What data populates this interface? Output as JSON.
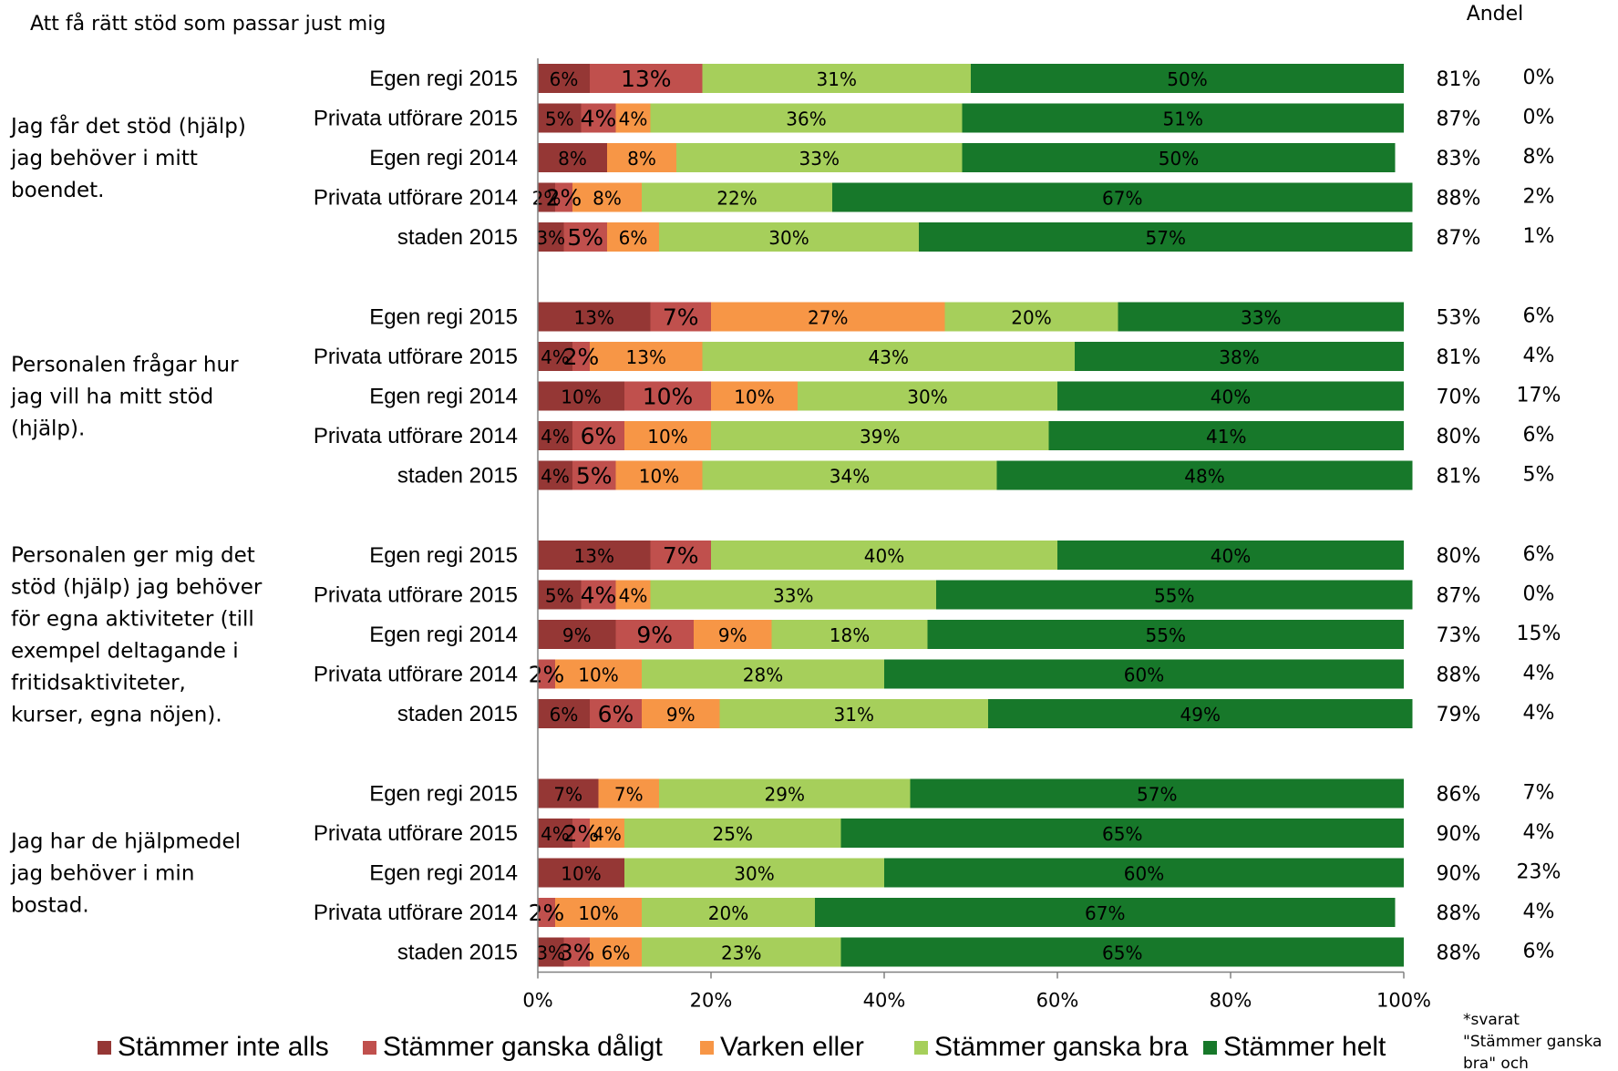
{
  "title": "Att få rätt stöd som passar just mig",
  "share_header": "Andel",
  "footnote_lines": [
    "*svarat",
    "\"Stämmer ganska",
    "bra\" och"
  ],
  "chart_data": {
    "type": "bar",
    "orientation": "horizontal",
    "stacked": true,
    "xlim": [
      0,
      100
    ],
    "xticks": [
      "0%",
      "20%",
      "40%",
      "60%",
      "80%",
      "100%"
    ],
    "legend_position": "bottom",
    "categories": [
      "Stämmer inte alls",
      "Stämmer ganska dåligt",
      "Varken eller",
      "Stämmer ganska bra",
      "Stämmer helt"
    ],
    "colors": [
      "#953735",
      "#c0504d",
      "#f79646",
      "#a6cf5b",
      "#17782a"
    ],
    "groups": [
      {
        "question_lines": [
          "Jag får det stöd (hjälp)",
          "jag behöver i mitt",
          "boendet."
        ],
        "rows": [
          {
            "label": "Egen regi 2015",
            "values": [
              6,
              13,
              0,
              31,
              50
            ],
            "value_labels": [
              "6%",
              "13%",
              "",
              "31%",
              "50%"
            ],
            "share": "81%",
            "extra": "0%"
          },
          {
            "label": "Privata utförare 2015",
            "values": [
              5,
              4,
              4,
              36,
              51
            ],
            "value_labels": [
              "5%",
              "4%",
              "4%",
              "36%",
              "51%"
            ],
            "share": "87%",
            "extra": "0%"
          },
          {
            "label": "Egen regi 2014",
            "values": [
              8,
              0,
              8,
              33,
              50
            ],
            "value_labels": [
              "8%",
              "",
              "8%",
              "33%",
              "50%"
            ],
            "share": "83%",
            "extra": "8%"
          },
          {
            "label": "Privata utförare 2014",
            "values": [
              2,
              2,
              8,
              22,
              67
            ],
            "value_labels": [
              "2%",
              "2%",
              "8%",
              "22%",
              "67%"
            ],
            "share": "88%",
            "extra": "2%"
          },
          {
            "label": "staden 2015",
            "values": [
              3,
              5,
              6,
              30,
              57
            ],
            "value_labels": [
              "3%",
              "5%",
              "6%",
              "30%",
              "57%"
            ],
            "share": "87%",
            "extra": "1%"
          }
        ]
      },
      {
        "question_lines": [
          "Personalen frågar hur",
          "jag vill ha mitt stöd",
          "(hjälp)."
        ],
        "rows": [
          {
            "label": "Egen regi 2015",
            "values": [
              13,
              7,
              27,
              20,
              33
            ],
            "value_labels": [
              "13%",
              "7%",
              "27%",
              "20%",
              "33%"
            ],
            "share": "53%",
            "extra": "6%"
          },
          {
            "label": "Privata utförare 2015",
            "values": [
              4,
              2,
              13,
              43,
              38
            ],
            "value_labels": [
              "4%",
              "2%",
              "13%",
              "43%",
              "38%"
            ],
            "share": "81%",
            "extra": "4%"
          },
          {
            "label": "Egen regi 2014",
            "values": [
              10,
              10,
              10,
              30,
              40
            ],
            "value_labels": [
              "10%",
              "10%",
              "10%",
              "30%",
              "40%"
            ],
            "share": "70%",
            "extra": "17%"
          },
          {
            "label": "Privata utförare 2014",
            "values": [
              4,
              6,
              10,
              39,
              41
            ],
            "value_labels": [
              "4%",
              "6%",
              "10%",
              "39%",
              "41%"
            ],
            "share": "80%",
            "extra": "6%"
          },
          {
            "label": "staden 2015",
            "values": [
              4,
              5,
              10,
              34,
              48
            ],
            "value_labels": [
              "4%",
              "5%",
              "10%",
              "34%",
              "48%"
            ],
            "share": "81%",
            "extra": "5%"
          }
        ]
      },
      {
        "question_lines": [
          "Personalen ger mig det",
          "stöd (hjälp) jag behöver",
          "för egna aktiviteter (till",
          "exempel deltagande i",
          "fritidsaktiviteter,",
          "kurser, egna nöjen)."
        ],
        "rows": [
          {
            "label": "Egen regi 2015",
            "values": [
              13,
              7,
              0,
              40,
              40
            ],
            "value_labels": [
              "13%",
              "7%",
              "",
              "40%",
              "40%"
            ],
            "share": "80%",
            "extra": "6%"
          },
          {
            "label": "Privata utförare 2015",
            "values": [
              5,
              4,
              4,
              33,
              55
            ],
            "value_labels": [
              "5%",
              "4%",
              "4%",
              "33%",
              "55%"
            ],
            "share": "87%",
            "extra": "0%"
          },
          {
            "label": "Egen regi 2014",
            "values": [
              9,
              9,
              9,
              18,
              55
            ],
            "value_labels": [
              "9%",
              "9%",
              "9%",
              "18%",
              "55%"
            ],
            "share": "73%",
            "extra": "15%"
          },
          {
            "label": "Privata utförare 2014",
            "values": [
              0,
              2,
              10,
              28,
              60
            ],
            "value_labels": [
              "",
              "2%",
              "10%",
              "28%",
              "60%"
            ],
            "share": "88%",
            "extra": "4%"
          },
          {
            "label": "staden 2015",
            "values": [
              6,
              6,
              9,
              31,
              49
            ],
            "value_labels": [
              "6%",
              "6%",
              "9%",
              "31%",
              "49%"
            ],
            "share": "79%",
            "extra": "4%"
          }
        ]
      },
      {
        "question_lines": [
          "Jag har de hjälpmedel",
          "jag behöver i min",
          "bostad."
        ],
        "rows": [
          {
            "label": "Egen regi 2015",
            "values": [
              7,
              0,
              7,
              29,
              57
            ],
            "value_labels": [
              "7%",
              "",
              "7%",
              "29%",
              "57%"
            ],
            "share": "86%",
            "extra": "7%"
          },
          {
            "label": "Privata utförare 2015",
            "values": [
              4,
              2,
              4,
              25,
              65
            ],
            "value_labels": [
              "4%",
              "2%",
              "4%",
              "25%",
              "65%"
            ],
            "share": "90%",
            "extra": "4%"
          },
          {
            "label": "Egen regi 2014",
            "values": [
              10,
              0,
              0,
              30,
              60
            ],
            "value_labels": [
              "10%",
              "",
              "",
              "30%",
              "60%"
            ],
            "share": "90%",
            "extra": "23%"
          },
          {
            "label": "Privata utförare 2014",
            "values": [
              0,
              2,
              10,
              20,
              67
            ],
            "value_labels": [
              "",
              "2%",
              "10%",
              "20%",
              "67%"
            ],
            "share": "88%",
            "extra": "4%"
          },
          {
            "label": "staden 2015",
            "values": [
              3,
              3,
              6,
              23,
              65
            ],
            "value_labels": [
              "3%",
              "3%",
              "6%",
              "23%",
              "65%"
            ],
            "share": "88%",
            "extra": "6%"
          }
        ]
      }
    ]
  }
}
